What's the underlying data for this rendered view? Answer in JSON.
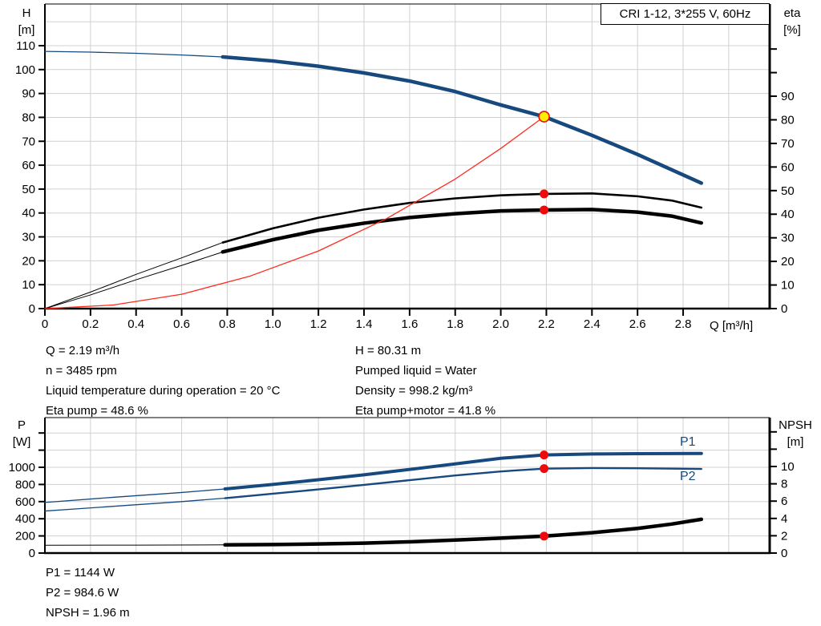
{
  "title_box": "CRI 1-12, 3*255 V, 60Hz",
  "colors": {
    "curve_blue": "#17497F",
    "curve_black": "#000000",
    "system_red": "#FF2A1E",
    "dot_red": "#EE0A0A",
    "dot_yellow": "#FFEE00",
    "grid": "#D0D0D0",
    "axis": "#000000"
  },
  "info_top": {
    "col1": [
      "Q = 2.19 m³/h",
      "n = 3485 rpm",
      "Liquid temperature during operation = 20 °C",
      "Eta pump = 48.6 %"
    ],
    "col2": [
      "H = 80.31 m",
      "Pumped liquid = Water",
      "Density = 998.2 kg/m³",
      "Eta pump+motor = 41.8 %"
    ]
  },
  "info_bottom": [
    "P1 = 1144 W",
    "P2 = 984.6 W",
    "NPSH = 1.96 m"
  ],
  "chart_data": [
    {
      "type": "line",
      "name": "hq-eta-chart",
      "x_axis": {
        "label": "Q [m³/h]",
        "min": 0,
        "max": 3.18,
        "tick_values": [
          0,
          0.2,
          0.4,
          0.6,
          0.8,
          1.0,
          1.2,
          1.4,
          1.6,
          1.8,
          2.0,
          2.2,
          2.4,
          2.6,
          2.8
        ],
        "tick_labels": [
          "0",
          "0.2",
          "0.4",
          "0.6",
          "0.8",
          "1.0",
          "1.2",
          "1.4",
          "1.6",
          "1.8",
          "2.0",
          "2.2",
          "2.4",
          "2.6",
          "2.8"
        ],
        "grid_values": [
          0.2,
          0.4,
          0.6,
          0.8,
          1.0,
          1.2,
          1.4,
          1.6,
          1.8,
          2.0,
          2.2,
          2.4,
          2.6,
          2.8,
          3.0
        ]
      },
      "left_axis": {
        "label_lines": [
          "H",
          "[m]"
        ],
        "min": 0,
        "max": 127,
        "tick_values": [
          0,
          10,
          20,
          30,
          40,
          50,
          60,
          70,
          80,
          90,
          100,
          110
        ],
        "tick_labels": [
          "0",
          "10",
          "20",
          "30",
          "40",
          "50",
          "60",
          "70",
          "80",
          "90",
          "100",
          "110"
        ],
        "grid_values": [
          10,
          20,
          30,
          40,
          50,
          60,
          70,
          80,
          90,
          100,
          110,
          120
        ]
      },
      "right_axis": {
        "label_lines": [
          "eta",
          "[%]"
        ],
        "min": 0,
        "max": 129,
        "tick_values": [
          0,
          10,
          20,
          30,
          40,
          50,
          60,
          70,
          80,
          90
        ],
        "tick_labels": [
          "0",
          "10",
          "20",
          "30",
          "40",
          "50",
          "60",
          "70",
          "80",
          "90"
        ],
        "unlabeled_ticks": [
          100,
          110
        ]
      },
      "series": [
        {
          "name": "head-curve",
          "axis": "left",
          "color": "curve_blue",
          "split_q": 0.78,
          "thin": 1.3,
          "thick": 4.5,
          "q": [
            0,
            0.2,
            0.4,
            0.6,
            0.78,
            1.0,
            1.2,
            1.4,
            1.6,
            1.8,
            2.0,
            2.19,
            2.4,
            2.6,
            2.88
          ],
          "v": [
            107.6,
            107.3,
            106.8,
            106.1,
            105.3,
            103.6,
            101.4,
            98.6,
            95.2,
            90.8,
            85.2,
            80.31,
            72.5,
            64.5,
            52.5
          ]
        },
        {
          "name": "eta-pump-curve",
          "axis": "right",
          "color": "curve_black",
          "split_q": 0.78,
          "thin": 1,
          "thick": 2.6,
          "q": [
            0,
            0.2,
            0.4,
            0.6,
            0.78,
            1.0,
            1.2,
            1.4,
            1.6,
            1.8,
            2.0,
            2.19,
            2.4,
            2.6,
            2.75,
            2.88
          ],
          "v": [
            0,
            7,
            14.5,
            21.5,
            28,
            34,
            38.5,
            42,
            44.8,
            46.7,
            48,
            48.6,
            48.8,
            47.6,
            45.8,
            42.8
          ]
        },
        {
          "name": "eta-pump-motor-curve",
          "axis": "right",
          "color": "curve_black",
          "split_q": 0.78,
          "thin": 1,
          "thick": 4.5,
          "q": [
            0,
            0.2,
            0.4,
            0.6,
            0.78,
            1.0,
            1.2,
            1.4,
            1.6,
            1.8,
            2.0,
            2.19,
            2.4,
            2.6,
            2.75,
            2.88
          ],
          "v": [
            0,
            5.8,
            12.2,
            18.3,
            24,
            29.2,
            33.2,
            36.2,
            38.6,
            40.2,
            41.4,
            41.8,
            42,
            40.9,
            39.2,
            36.3
          ]
        },
        {
          "name": "system-curve",
          "axis": "left",
          "color": "system_red",
          "split_q": 99,
          "thin": 1.3,
          "thick": 1.3,
          "q": [
            0,
            0.3,
            0.6,
            0.9,
            1.2,
            1.5,
            1.8,
            2.0,
            2.19
          ],
          "v": [
            0,
            1.5,
            6,
            13.6,
            24.1,
            37.7,
            54.2,
            67,
            80.31
          ]
        }
      ],
      "duty_points": [
        {
          "name": "duty-point-head",
          "axis": "left",
          "q": 2.19,
          "v": 80.31,
          "style": "yellow"
        },
        {
          "name": "duty-point-eta-pump",
          "axis": "right",
          "q": 2.19,
          "v": 48.6,
          "style": "red"
        },
        {
          "name": "duty-point-eta-pump-motor",
          "axis": "right",
          "q": 2.19,
          "v": 41.8,
          "style": "red"
        }
      ]
    },
    {
      "type": "line",
      "name": "power-npsh-chart",
      "x_axis": {
        "label": "",
        "min": 0,
        "max": 3.18,
        "tick_values": [],
        "tick_labels": [],
        "grid_values": [
          0.2,
          0.4,
          0.6,
          0.8,
          1.0,
          1.2,
          1.4,
          1.6,
          1.8,
          2.0,
          2.2,
          2.4,
          2.6,
          2.8,
          3.0
        ]
      },
      "left_axis": {
        "label_lines": [
          "P",
          "[W]"
        ],
        "min": 0,
        "max": 1580,
        "tick_values": [
          0,
          200,
          400,
          600,
          800,
          1000
        ],
        "tick_labels": [
          "0",
          "200",
          "400",
          "600",
          "800",
          "1000"
        ],
        "unlabeled_ticks": [
          1200,
          1400
        ],
        "grid_values": [
          200,
          400,
          600,
          800,
          1000,
          1200,
          1400
        ]
      },
      "right_axis": {
        "label_lines": [
          "NPSH",
          "[m]"
        ],
        "min": 0,
        "max": 15.6,
        "tick_values": [
          0,
          2,
          4,
          6,
          8,
          10
        ],
        "tick_labels": [
          "0",
          "2",
          "4",
          "6",
          "8",
          "10"
        ],
        "unlabeled_ticks": [
          12,
          14
        ]
      },
      "labels": {
        "p1": "P1",
        "p2": "P2"
      },
      "series": [
        {
          "name": "p1-curve",
          "axis": "left",
          "color": "curve_blue",
          "split_q": 0.79,
          "thin": 1.3,
          "thick": 4,
          "q": [
            0,
            0.3,
            0.6,
            0.79,
            1.0,
            1.2,
            1.4,
            1.6,
            1.8,
            2.0,
            2.19,
            2.4,
            2.6,
            2.88
          ],
          "v": [
            590,
            650,
            706,
            748,
            800,
            855,
            912,
            975,
            1040,
            1105,
            1144,
            1155,
            1159,
            1161
          ]
        },
        {
          "name": "p2-curve",
          "axis": "left",
          "color": "curve_blue",
          "split_q": 0.79,
          "thin": 1.3,
          "thick": 2.4,
          "q": [
            0,
            0.3,
            0.6,
            0.79,
            1.0,
            1.2,
            1.4,
            1.6,
            1.8,
            2.0,
            2.19,
            2.4,
            2.6,
            2.88
          ],
          "v": [
            490,
            545,
            600,
            640,
            692,
            742,
            795,
            850,
            905,
            952,
            984.6,
            991,
            989,
            981
          ]
        },
        {
          "name": "npsh-curve",
          "axis": "right",
          "color": "curve_black",
          "split_q": 0.79,
          "thin": 1,
          "thick": 4.5,
          "q": [
            0,
            0.4,
            0.79,
            1.0,
            1.2,
            1.4,
            1.6,
            1.8,
            2.0,
            2.19,
            2.4,
            2.6,
            2.75,
            2.88
          ],
          "v": [
            0.9,
            0.92,
            0.95,
            0.98,
            1.05,
            1.15,
            1.3,
            1.5,
            1.72,
            1.96,
            2.35,
            2.85,
            3.35,
            3.9
          ]
        }
      ],
      "duty_points": [
        {
          "name": "duty-point-p1",
          "axis": "left",
          "q": 2.19,
          "v": 1144,
          "style": "red"
        },
        {
          "name": "duty-point-p2",
          "axis": "left",
          "q": 2.19,
          "v": 984.6,
          "style": "red"
        },
        {
          "name": "duty-point-npsh",
          "axis": "right",
          "q": 2.19,
          "v": 1.96,
          "style": "red"
        }
      ]
    }
  ]
}
